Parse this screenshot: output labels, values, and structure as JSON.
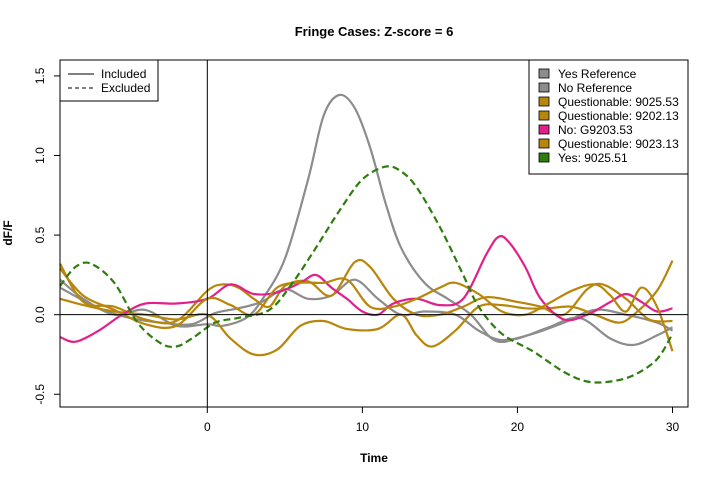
{
  "chart_data": {
    "type": "line",
    "title": "Fringe Cases: Z-score = 6",
    "xlabel": "Time",
    "ylabel": "dF/F",
    "xlim": [
      -9.5,
      31
    ],
    "ylim": [
      -0.58,
      1.6
    ],
    "xticks": [
      0,
      10,
      20,
      30
    ],
    "yticks": [
      -0.5,
      0.0,
      0.5,
      1.0,
      1.5
    ],
    "ytick_labels": [
      "-0.5",
      "0.0",
      "0.5",
      "1.0",
      "1.5"
    ],
    "xtick_labels": [
      "0",
      "10",
      "20",
      "30"
    ],
    "reference_lines": {
      "vertical_x": 0,
      "horizontal_y": 0
    },
    "linetype_legend": {
      "position": "top-left",
      "entries": [
        {
          "label": "Included",
          "dash": "solid"
        },
        {
          "label": "Excluded",
          "dash": "dashed"
        }
      ]
    },
    "color_legend": {
      "position": "top-right",
      "entries": [
        {
          "label": "Yes Reference",
          "color": "#8c8c8c"
        },
        {
          "label": "No Reference",
          "color": "#8c8c8c"
        },
        {
          "label": "Questionable: 9025.53",
          "color": "#b8860b"
        },
        {
          "label": "Questionable: 9202.13",
          "color": "#b8860b"
        },
        {
          "label": "No: G9203.53",
          "color": "#e0218a"
        },
        {
          "label": "Questionable: 9023.13",
          "color": "#b8860b"
        },
        {
          "label": "Yes: 9025.51",
          "color": "#2e7d0e"
        }
      ]
    },
    "series": [
      {
        "color": "#8c8c8c",
        "dash": "solid",
        "points": [
          [
            -9.5,
            0.22
          ],
          [
            -8,
            0.1
          ],
          [
            -6,
            0.0
          ],
          [
            -4,
            0.03
          ],
          [
            -2,
            -0.07
          ],
          [
            0,
            -0.06
          ],
          [
            1,
            -0.07
          ],
          [
            2.5,
            -0.02
          ],
          [
            3.5,
            0.09
          ],
          [
            5,
            0.35
          ],
          [
            6.5,
            0.85
          ],
          [
            7.5,
            1.25
          ],
          [
            8.5,
            1.38
          ],
          [
            9.5,
            1.3
          ],
          [
            10.5,
            1.05
          ],
          [
            11.5,
            0.7
          ],
          [
            12.5,
            0.42
          ],
          [
            14,
            0.2
          ],
          [
            15.5,
            0.1
          ],
          [
            17,
            0.0
          ],
          [
            18.5,
            -0.16
          ],
          [
            20,
            -0.15
          ],
          [
            22,
            -0.08
          ],
          [
            24,
            -0.02
          ],
          [
            26,
            -0.15
          ],
          [
            27.5,
            -0.19
          ],
          [
            29,
            -0.13
          ],
          [
            30,
            -0.08
          ]
        ]
      },
      {
        "color": "#8c8c8c",
        "dash": "solid",
        "points": [
          [
            -9.5,
            0.17
          ],
          [
            -7,
            0.04
          ],
          [
            -5,
            -0.02
          ],
          [
            -3,
            -0.05
          ],
          [
            -1,
            -0.06
          ],
          [
            0.5,
            0.01
          ],
          [
            2,
            0.04
          ],
          [
            3.5,
            0.08
          ],
          [
            5,
            0.16
          ],
          [
            6.5,
            0.1
          ],
          [
            8,
            0.12
          ],
          [
            9.5,
            0.22
          ],
          [
            11,
            0.1
          ],
          [
            12.5,
            0.0
          ],
          [
            14,
            0.02
          ],
          [
            16,
            0.0
          ],
          [
            17.5,
            -0.1
          ],
          [
            19,
            -0.16
          ],
          [
            21,
            -0.12
          ],
          [
            23,
            -0.05
          ],
          [
            25,
            0.03
          ],
          [
            27,
            0.0
          ],
          [
            29,
            -0.05
          ],
          [
            30,
            -0.1
          ]
        ]
      },
      {
        "color": "#b8860b",
        "dash": "solid",
        "points": [
          [
            -9.5,
            0.32
          ],
          [
            -8,
            0.08
          ],
          [
            -6,
            0.05
          ],
          [
            -4,
            -0.03
          ],
          [
            -2,
            -0.04
          ],
          [
            0,
            0.15
          ],
          [
            1,
            0.19
          ],
          [
            2,
            0.17
          ],
          [
            3,
            0.1
          ],
          [
            4,
            0.05
          ],
          [
            5,
            0.18
          ],
          [
            6.5,
            0.21
          ],
          [
            8,
            0.12
          ],
          [
            9.5,
            0.33
          ],
          [
            10.5,
            0.3
          ],
          [
            12,
            0.1
          ],
          [
            13.5,
            0.0
          ],
          [
            15,
            0.0
          ],
          [
            16.5,
            0.05
          ],
          [
            18,
            0.11
          ],
          [
            20,
            0.08
          ],
          [
            21.5,
            0.05
          ],
          [
            23,
            0.0
          ],
          [
            24.5,
            0.16
          ],
          [
            25.5,
            0.19
          ],
          [
            27,
            0.1
          ],
          [
            28.5,
            -0.03
          ],
          [
            30,
            -0.04
          ]
        ]
      },
      {
        "color": "#b8860b",
        "dash": "solid",
        "points": [
          [
            -9.5,
            0.1
          ],
          [
            -8,
            0.06
          ],
          [
            -6,
            0.02
          ],
          [
            -4,
            0.0
          ],
          [
            -2,
            -0.03
          ],
          [
            0,
            0.0
          ],
          [
            1.5,
            -0.15
          ],
          [
            3,
            -0.25
          ],
          [
            4.5,
            -0.22
          ],
          [
            6,
            -0.07
          ],
          [
            7.5,
            -0.04
          ],
          [
            9,
            -0.09
          ],
          [
            11,
            -0.09
          ],
          [
            12.5,
            0.0
          ],
          [
            13.5,
            -0.13
          ],
          [
            14.5,
            -0.2
          ],
          [
            16,
            -0.1
          ],
          [
            17.5,
            0.05
          ],
          [
            19,
            0.06
          ],
          [
            20.5,
            0.04
          ],
          [
            22,
            0.04
          ],
          [
            23.5,
            0.05
          ],
          [
            25,
            0.0
          ],
          [
            26.5,
            -0.05
          ],
          [
            27.5,
            0.0
          ],
          [
            29,
            0.15
          ],
          [
            30,
            0.34
          ]
        ]
      },
      {
        "color": "#e0218a",
        "dash": "solid",
        "points": [
          [
            -9.5,
            -0.14
          ],
          [
            -8.5,
            -0.17
          ],
          [
            -7,
            -0.1
          ],
          [
            -5.5,
            0.0
          ],
          [
            -4,
            0.07
          ],
          [
            -2,
            0.07
          ],
          [
            0,
            0.1
          ],
          [
            1.5,
            0.19
          ],
          [
            3,
            0.13
          ],
          [
            4.5,
            0.14
          ],
          [
            6,
            0.2
          ],
          [
            7,
            0.25
          ],
          [
            8,
            0.17
          ],
          [
            9,
            0.1
          ],
          [
            10,
            0.02
          ],
          [
            11,
            0.0
          ],
          [
            12,
            0.07
          ],
          [
            13.5,
            0.1
          ],
          [
            15,
            0.06
          ],
          [
            16.5,
            0.1
          ],
          [
            18,
            0.38
          ],
          [
            18.8,
            0.49
          ],
          [
            19.5,
            0.45
          ],
          [
            20.5,
            0.3
          ],
          [
            21.5,
            0.1
          ],
          [
            23,
            -0.03
          ],
          [
            24.5,
            0.0
          ],
          [
            26,
            0.08
          ],
          [
            27,
            0.13
          ],
          [
            28,
            0.08
          ],
          [
            29,
            0.02
          ],
          [
            30,
            0.04
          ]
        ]
      },
      {
        "color": "#b8860b",
        "dash": "solid",
        "points": [
          [
            -9.5,
            0.29
          ],
          [
            -8,
            0.12
          ],
          [
            -6,
            0.03
          ],
          [
            -4,
            -0.06
          ],
          [
            -2,
            -0.07
          ],
          [
            0,
            0.1
          ],
          [
            1.5,
            0.06
          ],
          [
            3,
            0.0
          ],
          [
            4.5,
            0.17
          ],
          [
            6,
            0.2
          ],
          [
            7.5,
            0.2
          ],
          [
            9,
            0.22
          ],
          [
            10.5,
            0.05
          ],
          [
            12,
            0.05
          ],
          [
            13.5,
            0.1
          ],
          [
            15,
            0.17
          ],
          [
            16,
            0.2
          ],
          [
            17.5,
            0.13
          ],
          [
            19,
            0.02
          ],
          [
            20.5,
            0.0
          ],
          [
            22,
            0.07
          ],
          [
            23.5,
            0.15
          ],
          [
            25,
            0.19
          ],
          [
            26,
            0.12
          ],
          [
            27,
            0.02
          ],
          [
            28,
            0.17
          ],
          [
            29,
            0.05
          ],
          [
            30,
            -0.23
          ]
        ]
      },
      {
        "color": "#2e7d0e",
        "dash": "dashed",
        "points": [
          [
            -9.5,
            0.18
          ],
          [
            -8.5,
            0.3
          ],
          [
            -7.5,
            0.32
          ],
          [
            -6,
            0.2
          ],
          [
            -4.5,
            -0.05
          ],
          [
            -3,
            -0.18
          ],
          [
            -2,
            -0.2
          ],
          [
            -1,
            -0.15
          ],
          [
            0.5,
            -0.05
          ],
          [
            2,
            -0.02
          ],
          [
            4,
            0.03
          ],
          [
            5.5,
            0.2
          ],
          [
            7,
            0.42
          ],
          [
            8.5,
            0.65
          ],
          [
            10,
            0.85
          ],
          [
            11.5,
            0.93
          ],
          [
            12.5,
            0.9
          ],
          [
            13.5,
            0.8
          ],
          [
            15,
            0.55
          ],
          [
            16.5,
            0.25
          ],
          [
            17.5,
            0.05
          ],
          [
            19,
            -0.12
          ],
          [
            21,
            -0.23
          ],
          [
            23,
            -0.36
          ],
          [
            24.5,
            -0.42
          ],
          [
            26,
            -0.42
          ],
          [
            27.5,
            -0.38
          ],
          [
            29,
            -0.28
          ],
          [
            30,
            -0.12
          ]
        ]
      }
    ]
  }
}
